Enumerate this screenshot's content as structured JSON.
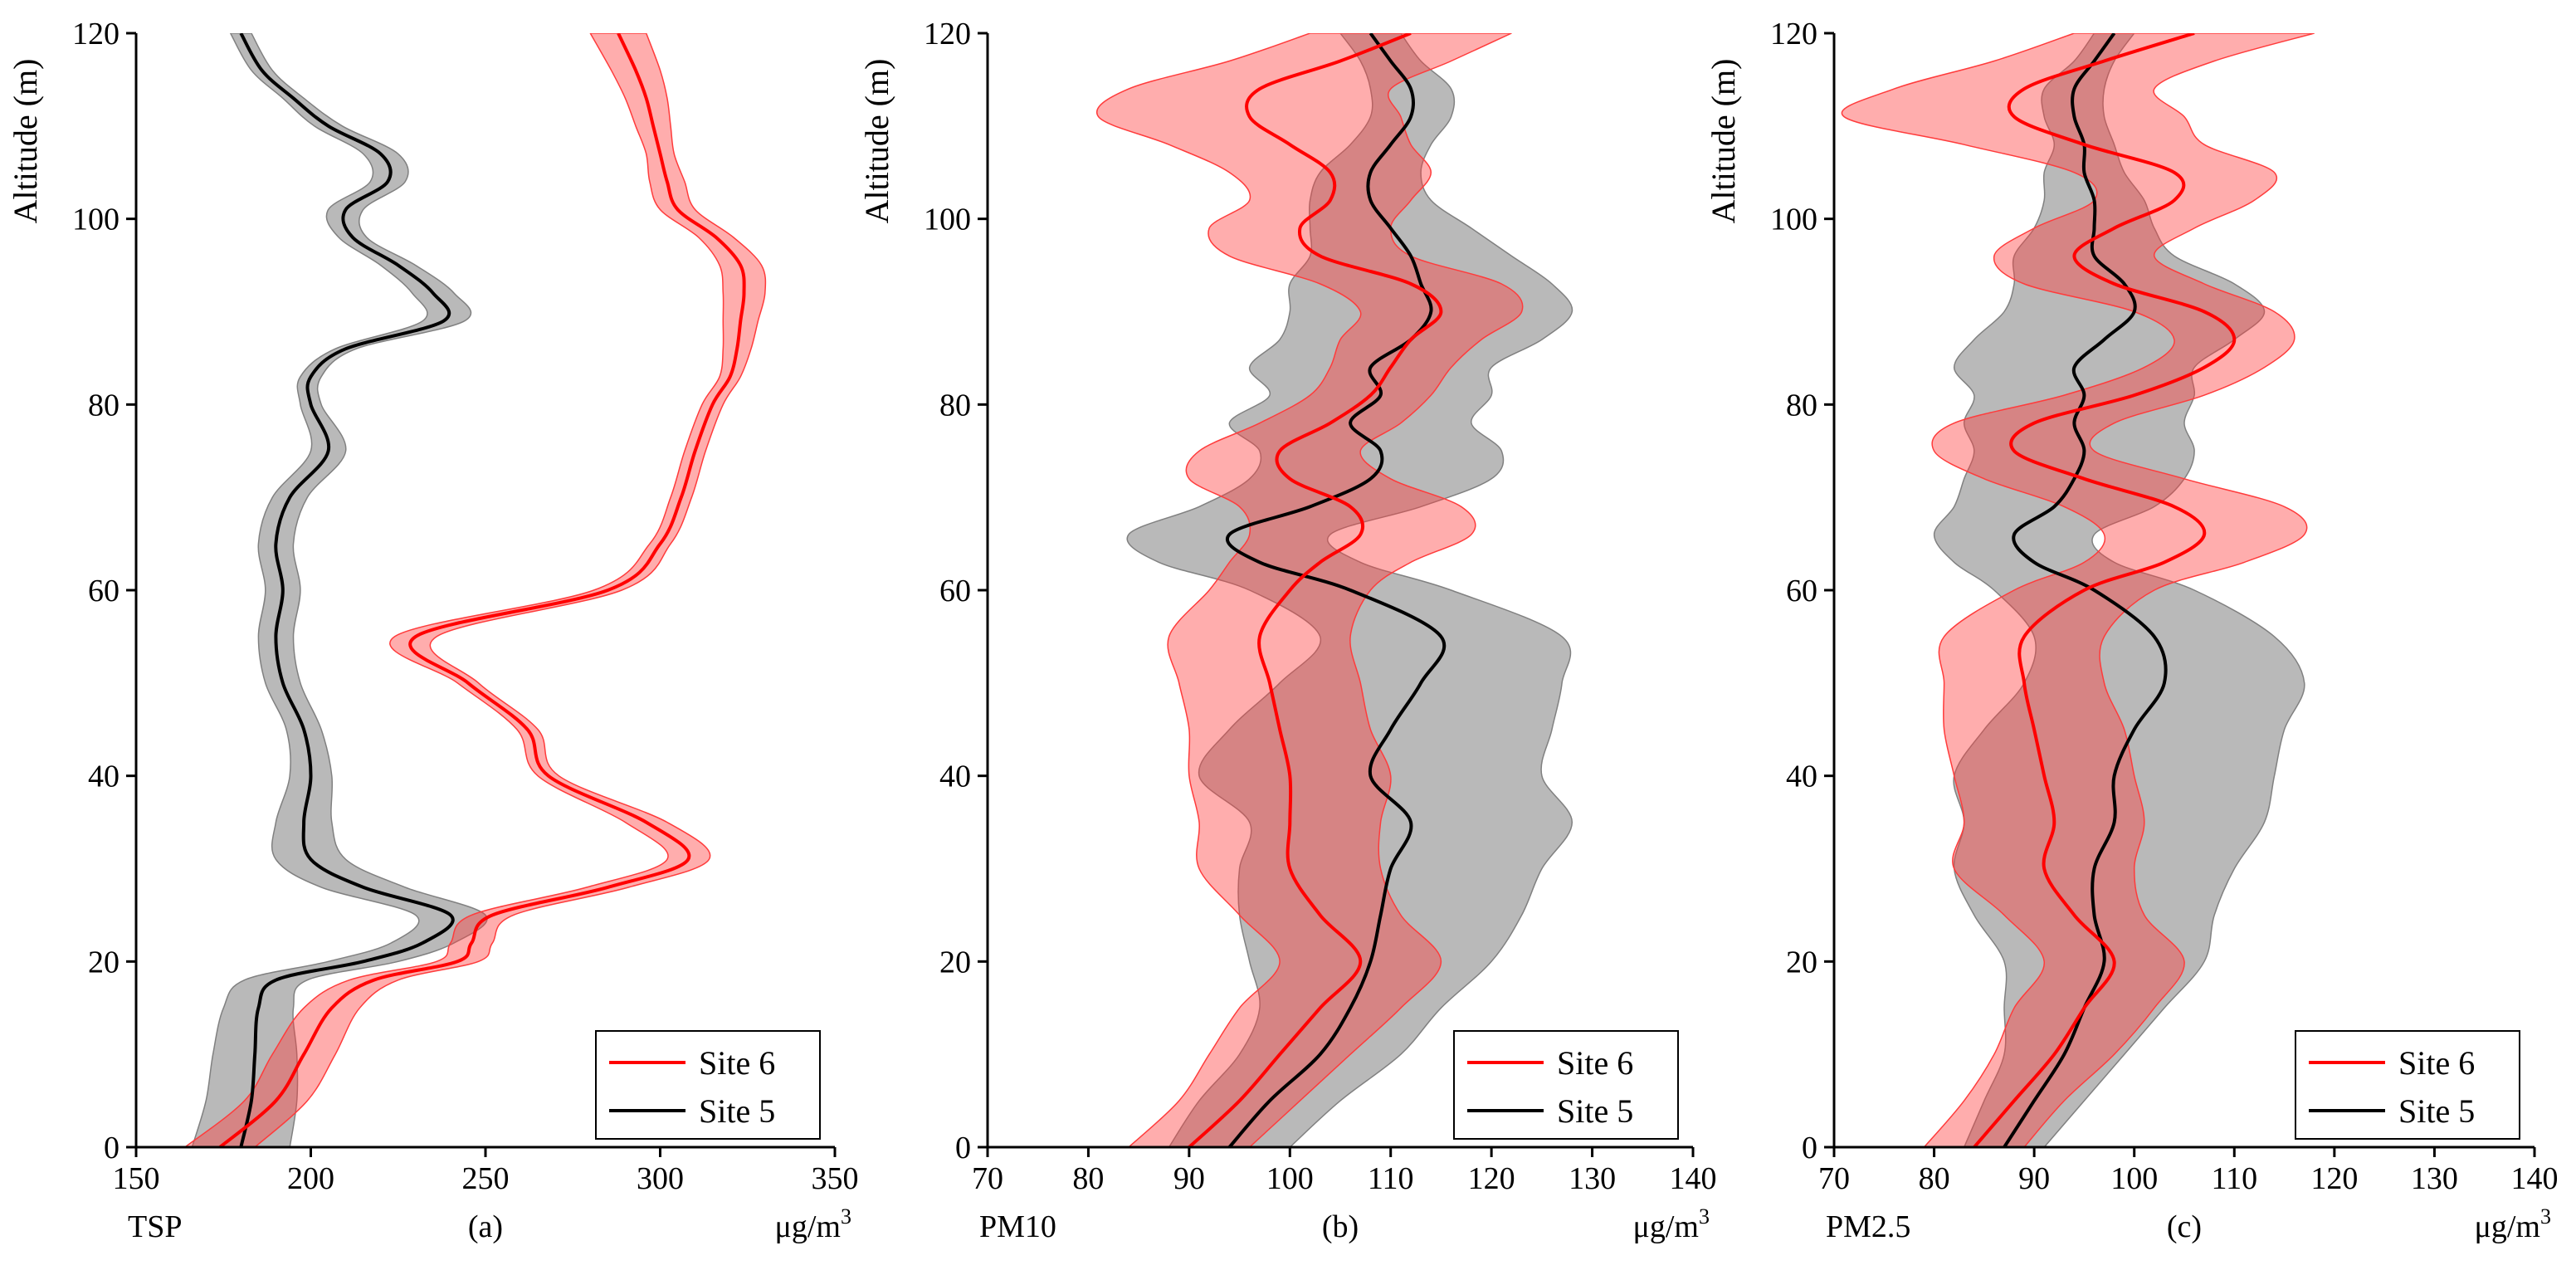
{
  "chart_data": [
    {
      "type": "line",
      "panel_label": "(a)",
      "pollutant_label": "TSP",
      "unit_label": "μg/m",
      "unit_superscript": "3",
      "ylabel": "Altitude (m)",
      "xlim": [
        150,
        350
      ],
      "ylim": [
        0,
        120
      ],
      "xticks": [
        150,
        200,
        250,
        300,
        350
      ],
      "yticks": [
        0,
        20,
        40,
        60,
        80,
        100,
        120
      ],
      "altitude": [
        0,
        5,
        10,
        15,
        18,
        20,
        22,
        25,
        28,
        31,
        35,
        40,
        45,
        50,
        55,
        60,
        65,
        70,
        75,
        80,
        83,
        86,
        89,
        92,
        95,
        98,
        101,
        104,
        107,
        110,
        113,
        116,
        120
      ],
      "series": [
        {
          "name": "Site 6",
          "color": "#ff0000",
          "band_color": "#ff3b3b",
          "values": [
            174,
            190,
            198,
            206,
            218,
            242,
            246,
            252,
            285,
            308,
            296,
            268,
            262,
            245,
            230,
            285,
            300,
            306,
            310,
            315,
            320,
            322,
            323,
            324,
            323,
            316,
            305,
            302,
            300,
            298,
            296,
            293,
            288
          ],
          "spread": [
            10,
            9,
            9,
            8,
            7,
            6,
            6,
            6,
            6,
            6,
            6,
            3,
            3,
            3,
            6,
            4,
            3,
            3,
            3,
            3,
            3,
            4,
            5,
            6,
            6,
            5,
            5,
            5,
            4,
            5,
            6,
            7,
            8
          ]
        },
        {
          "name": "Site 5",
          "color": "#000000",
          "band_color": "#808080",
          "values": [
            180,
            183,
            184,
            185,
            190,
            215,
            232,
            240,
            215,
            200,
            198,
            200,
            198,
            192,
            190,
            192,
            190,
            194,
            205,
            200,
            200,
            210,
            238,
            235,
            225,
            212,
            210,
            222,
            220,
            205,
            195,
            186,
            180
          ],
          "spread": [
            14,
            13,
            12,
            10,
            9,
            10,
            9,
            10,
            12,
            10,
            8,
            6,
            5,
            5,
            5,
            5,
            5,
            5,
            5,
            3,
            3,
            3,
            6,
            6,
            5,
            4,
            5,
            5,
            5,
            4,
            3,
            3,
            3
          ]
        }
      ],
      "legend": [
        "Site 6",
        "Site 5"
      ],
      "legend_position": "bottom-right"
    },
    {
      "type": "line",
      "panel_label": "(b)",
      "pollutant_label": "PM10",
      "unit_label": "μg/m",
      "unit_superscript": "3",
      "ylabel": "Altitude (m)",
      "xlim": [
        70,
        140
      ],
      "ylim": [
        0,
        120
      ],
      "xticks": [
        70,
        80,
        90,
        100,
        110,
        120,
        130,
        140
      ],
      "yticks": [
        0,
        20,
        40,
        60,
        80,
        100,
        120
      ],
      "altitude": [
        0,
        5,
        10,
        15,
        20,
        25,
        30,
        35,
        40,
        45,
        50,
        55,
        60,
        63,
        66,
        69,
        72,
        75,
        78,
        81,
        84,
        87,
        90,
        93,
        96,
        99,
        102,
        105,
        108,
        111,
        114,
        117,
        120
      ],
      "series": [
        {
          "name": "Site 6",
          "color": "#ff0000",
          "band_color": "#ff3b3b",
          "values": [
            90,
            95,
            99,
            103,
            107,
            103,
            100,
            100,
            100,
            99,
            98,
            97,
            100,
            103,
            107,
            106,
            100,
            99,
            104,
            108,
            110,
            112,
            115,
            112,
            103,
            101,
            104,
            104,
            100,
            96,
            97,
            105,
            112
          ],
          "spread": [
            6,
            6,
            7,
            8,
            8,
            8,
            9,
            9,
            10,
            9,
            9,
            9,
            8,
            9,
            11,
            11,
            10,
            8,
            7,
            6,
            6,
            7,
            8,
            9,
            9,
            9,
            8,
            10,
            12,
            15,
            13,
            11,
            10
          ]
        },
        {
          "name": "Site 5",
          "color": "#000000",
          "band_color": "#808080",
          "values": [
            94,
            98,
            103,
            106,
            108,
            109,
            110,
            112,
            108,
            110,
            113,
            115,
            106,
            97,
            94,
            102,
            108,
            109,
            106,
            109,
            108,
            112,
            114,
            113,
            112,
            110,
            108,
            108,
            110,
            112,
            112,
            110,
            108
          ],
          "spread": [
            6,
            7,
            8,
            9,
            12,
            14,
            15,
            16,
            17,
            16,
            14,
            12,
            10,
            10,
            10,
            11,
            12,
            12,
            12,
            11,
            12,
            13,
            14,
            13,
            10,
            8,
            6,
            5,
            4,
            4,
            4,
            3,
            3
          ]
        }
      ],
      "legend": [
        "Site 6",
        "Site 5"
      ],
      "legend_position": "bottom-right"
    },
    {
      "type": "line",
      "panel_label": "(c)",
      "pollutant_label": "PM2.5",
      "unit_label": "μg/m",
      "unit_superscript": "3",
      "ylabel": "Altitude (m)",
      "xlim": [
        70,
        140
      ],
      "ylim": [
        0,
        120
      ],
      "xticks": [
        70,
        80,
        90,
        100,
        110,
        120,
        130,
        140
      ],
      "yticks": [
        0,
        20,
        40,
        60,
        80,
        100,
        120
      ],
      "altitude": [
        0,
        5,
        10,
        15,
        20,
        25,
        30,
        35,
        40,
        45,
        50,
        55,
        60,
        63,
        66,
        69,
        72,
        75,
        78,
        81,
        84,
        87,
        90,
        93,
        96,
        99,
        102,
        105,
        108,
        111,
        114,
        117,
        120
      ],
      "series": [
        {
          "name": "Site 6",
          "color": "#ff0000",
          "band_color": "#ff3b3b",
          "values": [
            84,
            88,
            92,
            95,
            98,
            94,
            91,
            92,
            91,
            90,
            89,
            89,
            95,
            103,
            107,
            104,
            95,
            88,
            90,
            100,
            107,
            110,
            107,
            98,
            94,
            98,
            104,
            104,
            95,
            88,
            89,
            97,
            106
          ],
          "spread": [
            5,
            5,
            6,
            7,
            7,
            7,
            9,
            9,
            9,
            9,
            8,
            8,
            7,
            8,
            10,
            11,
            10,
            8,
            8,
            7,
            6,
            6,
            7,
            9,
            8,
            8,
            8,
            10,
            12,
            17,
            13,
            11,
            12
          ]
        },
        {
          "name": "Site 5",
          "color": "#000000",
          "band_color": "#808080",
          "values": [
            87,
            90,
            93,
            95,
            97,
            96,
            96,
            98,
            98,
            100,
            103,
            102,
            96,
            90,
            88,
            92,
            94,
            95,
            94,
            95,
            94,
            97,
            100,
            99,
            96,
            96,
            96,
            95,
            95,
            94,
            94,
            96,
            98
          ],
          "spread": [
            4,
            5,
            6,
            8,
            10,
            12,
            14,
            15,
            16,
            15,
            14,
            12,
            10,
            8,
            8,
            10,
            11,
            11,
            11,
            11,
            12,
            13,
            13,
            11,
            8,
            6,
            5,
            4,
            3,
            3,
            3,
            2,
            2
          ]
        }
      ],
      "legend": [
        "Site 6",
        "Site 5"
      ],
      "legend_position": "bottom-right"
    }
  ]
}
